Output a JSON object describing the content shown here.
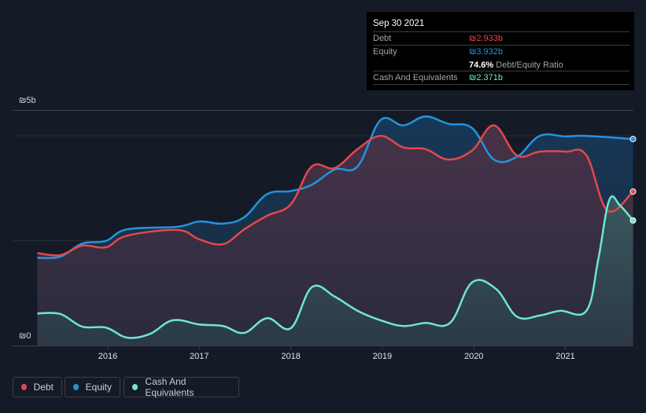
{
  "tooltip": {
    "date": "Sep 30 2021",
    "debt_label": "Debt",
    "debt_value": "₪2.933b",
    "equity_label": "Equity",
    "equity_value": "₪3.932b",
    "ratio_value": "74.6%",
    "ratio_label": "Debt/Equity Ratio",
    "cash_label": "Cash And Equivalents",
    "cash_value": "₪2.371b"
  },
  "legend": {
    "debt": "Debt",
    "equity": "Equity",
    "cash": "Cash And Equivalents"
  },
  "colors": {
    "debt": "#e5474c",
    "equity": "#2394df",
    "cash": "#6de6d4"
  },
  "chart_data": {
    "type": "area",
    "title": "",
    "xlabel": "",
    "ylabel": "",
    "y_tick_labels": [
      "₪0",
      "₪5b"
    ],
    "x_ticks": [
      "2016",
      "2017",
      "2018",
      "2019",
      "2020",
      "2021"
    ],
    "unit": "₪ billions",
    "legend_position": "bottom-left",
    "series": [
      {
        "name": "Equity",
        "points": [
          [
            2015.23,
            1.67
          ],
          [
            2015.48,
            1.69
          ],
          [
            2015.72,
            1.94
          ],
          [
            2015.98,
            1.99
          ],
          [
            2016.21,
            2.21
          ],
          [
            2016.76,
            2.26
          ],
          [
            2017.0,
            2.36
          ],
          [
            2017.26,
            2.32
          ],
          [
            2017.49,
            2.44
          ],
          [
            2017.74,
            2.88
          ],
          [
            2018.0,
            2.94
          ],
          [
            2018.23,
            3.06
          ],
          [
            2018.48,
            3.35
          ],
          [
            2018.73,
            3.41
          ],
          [
            2018.98,
            4.29
          ],
          [
            2019.23,
            4.19
          ],
          [
            2019.47,
            4.36
          ],
          [
            2019.72,
            4.22
          ],
          [
            2019.98,
            4.14
          ],
          [
            2020.22,
            3.54
          ],
          [
            2020.47,
            3.59
          ],
          [
            2020.72,
            3.99
          ],
          [
            2021.0,
            3.98
          ],
          [
            2021.23,
            3.99
          ],
          [
            2021.74,
            3.93
          ]
        ]
      },
      {
        "name": "Debt",
        "points": [
          [
            2015.23,
            1.76
          ],
          [
            2015.48,
            1.72
          ],
          [
            2015.72,
            1.9
          ],
          [
            2015.98,
            1.87
          ],
          [
            2016.21,
            2.09
          ],
          [
            2016.76,
            2.2
          ],
          [
            2017.0,
            2.02
          ],
          [
            2017.26,
            1.93
          ],
          [
            2017.49,
            2.21
          ],
          [
            2017.74,
            2.47
          ],
          [
            2018.0,
            2.69
          ],
          [
            2018.23,
            3.41
          ],
          [
            2018.48,
            3.38
          ],
          [
            2018.73,
            3.74
          ],
          [
            2018.98,
            3.99
          ],
          [
            2019.23,
            3.77
          ],
          [
            2019.47,
            3.74
          ],
          [
            2019.72,
            3.54
          ],
          [
            2019.98,
            3.71
          ],
          [
            2020.22,
            4.19
          ],
          [
            2020.47,
            3.62
          ],
          [
            2020.72,
            3.69
          ],
          [
            2021.0,
            3.69
          ],
          [
            2021.23,
            3.62
          ],
          [
            2021.46,
            2.57
          ],
          [
            2021.74,
            2.93
          ]
        ]
      },
      {
        "name": "Cash And Equivalents",
        "points": [
          [
            2015.23,
            0.61
          ],
          [
            2015.48,
            0.6
          ],
          [
            2015.72,
            0.36
          ],
          [
            2015.98,
            0.34
          ],
          [
            2016.21,
            0.15
          ],
          [
            2016.46,
            0.22
          ],
          [
            2016.71,
            0.48
          ],
          [
            2017.0,
            0.4
          ],
          [
            2017.26,
            0.37
          ],
          [
            2017.49,
            0.24
          ],
          [
            2017.74,
            0.52
          ],
          [
            2018.0,
            0.33
          ],
          [
            2018.23,
            1.11
          ],
          [
            2018.48,
            0.93
          ],
          [
            2018.73,
            0.66
          ],
          [
            2018.98,
            0.48
          ],
          [
            2019.23,
            0.37
          ],
          [
            2019.47,
            0.43
          ],
          [
            2019.74,
            0.43
          ],
          [
            2019.98,
            1.2
          ],
          [
            2020.24,
            1.08
          ],
          [
            2020.47,
            0.55
          ],
          [
            2020.72,
            0.57
          ],
          [
            2020.94,
            0.66
          ],
          [
            2021.23,
            0.66
          ],
          [
            2021.36,
            1.64
          ],
          [
            2021.48,
            2.77
          ],
          [
            2021.6,
            2.66
          ],
          [
            2021.74,
            2.38
          ]
        ]
      }
    ]
  }
}
